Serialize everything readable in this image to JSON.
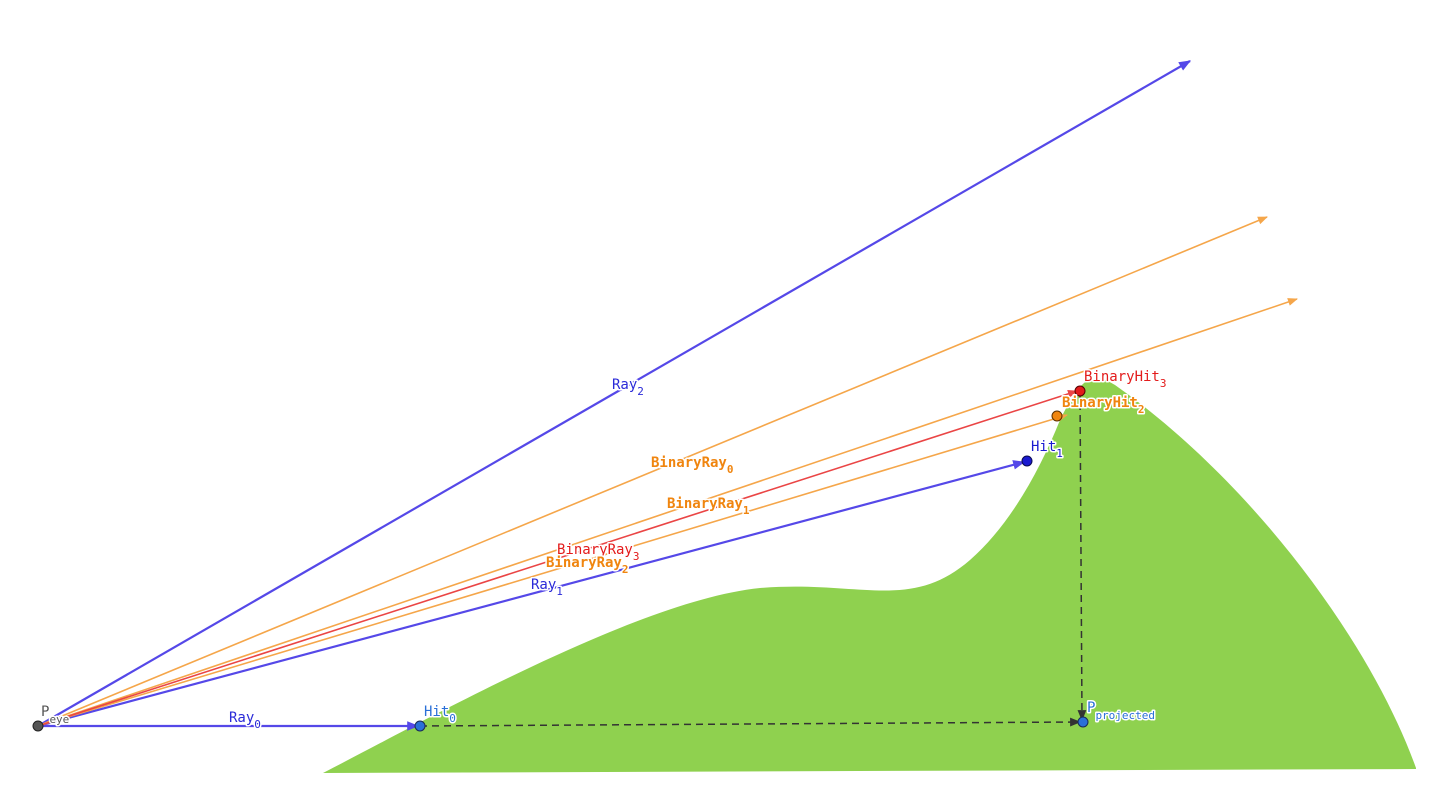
{
  "colors": {
    "terrain": "#8fd14f",
    "ray": "#5548e8",
    "ray_label": "#2a2ad8",
    "binary_orange": "#f5a64a",
    "binary_label": "#f0850f",
    "binary_red": "#ea4545",
    "binary_red_label": "#e31b1b",
    "projection": "#333333",
    "eye_label": "#555555",
    "projected_label": "#2a70d8"
  },
  "labels": {
    "eye": {
      "main": "P",
      "sub": "eye"
    },
    "ray0": {
      "main": "Ray",
      "sub": "0"
    },
    "ray1": {
      "main": "Ray",
      "sub": "1"
    },
    "ray2": {
      "main": "Ray",
      "sub": "2"
    },
    "binary_ray0": {
      "main": "BinaryRay",
      "sub": "0"
    },
    "binary_ray1": {
      "main": "BinaryRay",
      "sub": "1"
    },
    "binary_ray2": {
      "main": "BinaryRay",
      "sub": "2"
    },
    "binary_ray3": {
      "main": "BinaryRay",
      "sub": "3"
    },
    "hit0": {
      "main": "Hit",
      "sub": "0"
    },
    "hit1": {
      "main": "Hit",
      "sub": "1"
    },
    "binary_hit2": {
      "main": "BinaryHit",
      "sub": "2"
    },
    "binary_hit3": {
      "main": "BinaryHit",
      "sub": "3"
    },
    "projected": {
      "main": "P",
      "sub": "projected"
    }
  }
}
